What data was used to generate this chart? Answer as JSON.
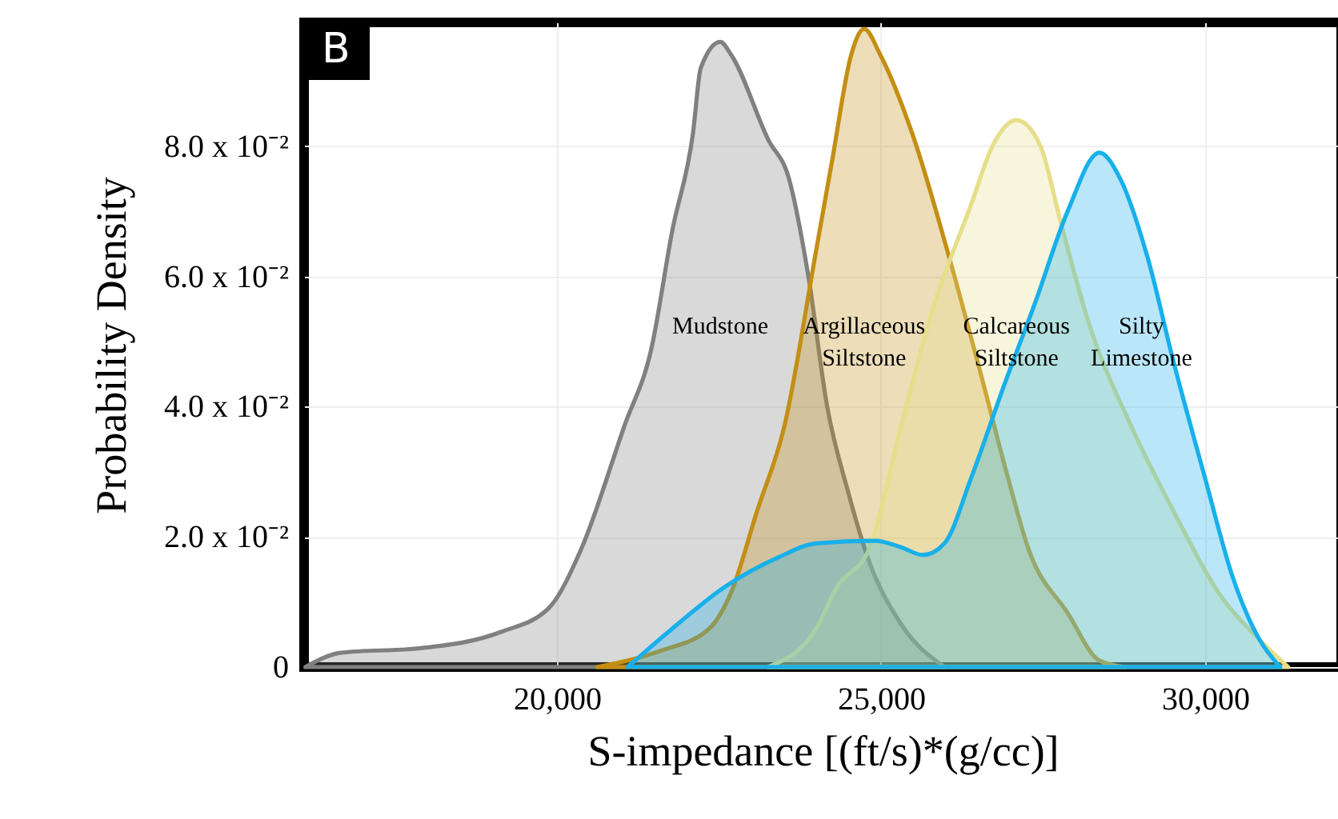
{
  "chart_data": {
    "type": "area",
    "xlabel": "S-impedance [(ft/s)*(g/cc)]",
    "ylabel": "Probability Density",
    "annotations": [
      "B"
    ],
    "xlim": [
      16100,
      32100
    ],
    "ylim": [
      0,
      0.099
    ],
    "xticks": [
      {
        "value": 20000,
        "label": "20,000"
      },
      {
        "value": 25000,
        "label": "25,000"
      },
      {
        "value": 30000,
        "label": "30,000"
      }
    ],
    "yticks": [
      {
        "value": 0,
        "label": "0"
      },
      {
        "value": 0.02,
        "label": "2.0 x 10⁻²"
      },
      {
        "value": 0.04,
        "label": "4.0 x 10⁻²"
      },
      {
        "value": 0.06,
        "label": "6.0 x 10⁻²"
      },
      {
        "value": 0.08,
        "label": "8.0 x 10⁻²"
      }
    ],
    "grid": true,
    "series": [
      {
        "name": "Mudstone",
        "color": "#808080",
        "x": [
          16120,
          16670,
          17900,
          19140,
          19880,
          20370,
          21040,
          21460,
          21780,
          22100,
          22220,
          22520,
          22690,
          23260,
          23580,
          23880,
          24170,
          24490,
          24810,
          25310,
          25980
        ],
        "values": [
          0,
          0.0022,
          0.0029,
          0.0054,
          0.0091,
          0.018,
          0.037,
          0.049,
          0.067,
          0.082,
          0.092,
          0.096,
          0.094,
          0.081,
          0.075,
          0.06,
          0.04,
          0.027,
          0.0164,
          0.0066,
          0
        ]
      },
      {
        "name": "Argillaceous Siltstone",
        "color": "#c38e14",
        "x": [
          20620,
          21600,
          22350,
          22690,
          23090,
          23510,
          24000,
          24250,
          24540,
          24740,
          24990,
          25480,
          26050,
          26540,
          26960,
          27280,
          27880,
          28370,
          28770
        ],
        "values": [
          0,
          0.0025,
          0.0059,
          0.0115,
          0.024,
          0.037,
          0.064,
          0.078,
          0.094,
          0.098,
          0.094,
          0.082,
          0.063,
          0.045,
          0.029,
          0.018,
          0.0083,
          0.001,
          0
        ]
      },
      {
        "name": "Calcareous Siltstone",
        "color": "#e6de8a",
        "x": [
          23260,
          24000,
          24320,
          24810,
          25310,
          25800,
          26390,
          26720,
          27090,
          27460,
          27780,
          28200,
          28860,
          29510,
          30250,
          30840,
          31280
        ],
        "values": [
          0,
          0.0059,
          0.0123,
          0.018,
          0.037,
          0.055,
          0.071,
          0.08,
          0.084,
          0.08,
          0.068,
          0.053,
          0.037,
          0.024,
          0.0108,
          0.0042,
          0
        ]
      },
      {
        "name": "Silty Limestone",
        "color": "#18b0ea",
        "x": [
          21090,
          21780,
          22590,
          23430,
          24000,
          24910,
          25310,
          25650,
          25980,
          26390,
          26890,
          27380,
          27880,
          28370,
          28690,
          29110,
          29510,
          30000,
          30420,
          30840,
          31160
        ],
        "values": [
          0,
          0.0059,
          0.0123,
          0.0169,
          0.019,
          0.0194,
          0.0184,
          0.0172,
          0.019,
          0.029,
          0.043,
          0.056,
          0.07,
          0.079,
          0.075,
          0.063,
          0.047,
          0.029,
          0.014,
          0.0042,
          0
        ]
      }
    ]
  }
}
